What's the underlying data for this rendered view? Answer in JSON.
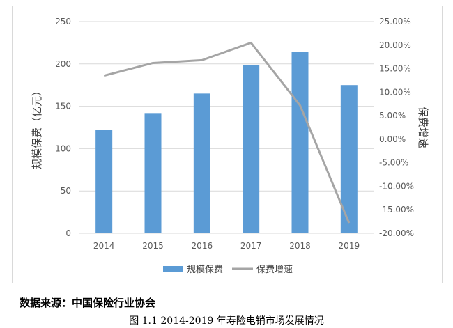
{
  "chart_data": {
    "type": "bar",
    "categories": [
      "2014",
      "2015",
      "2016",
      "2017",
      "2018",
      "2019"
    ],
    "series": [
      {
        "name": "规模保费",
        "type": "bar",
        "axis": "left",
        "color": "#5b9bd5",
        "values": [
          122,
          142,
          165,
          199,
          214,
          175
        ]
      },
      {
        "name": "保费增速",
        "type": "line",
        "axis": "right",
        "color": "#a5a5a5",
        "values": [
          13.5,
          16.2,
          16.8,
          20.5,
          7.2,
          -17.8
        ]
      }
    ],
    "ylabel": "规模保费（亿元）",
    "y2label": "保费增速",
    "ylim": [
      0,
      250
    ],
    "y2lim": [
      -20,
      25
    ],
    "yticks": [
      "0",
      "50",
      "100",
      "150",
      "200",
      "250"
    ],
    "y2ticks": [
      "-20.00%",
      "-15.00%",
      "-10.00%",
      "-5.00%",
      "0.00%",
      "5.00%",
      "10.00%",
      "15.00%",
      "20.00%",
      "25.00%"
    ],
    "grid": true,
    "legend": "bottom"
  },
  "source_note": "数据来源：中国保险行业协会",
  "caption": "图 1.1 2014-2019 年寿险电销市场发展情况"
}
